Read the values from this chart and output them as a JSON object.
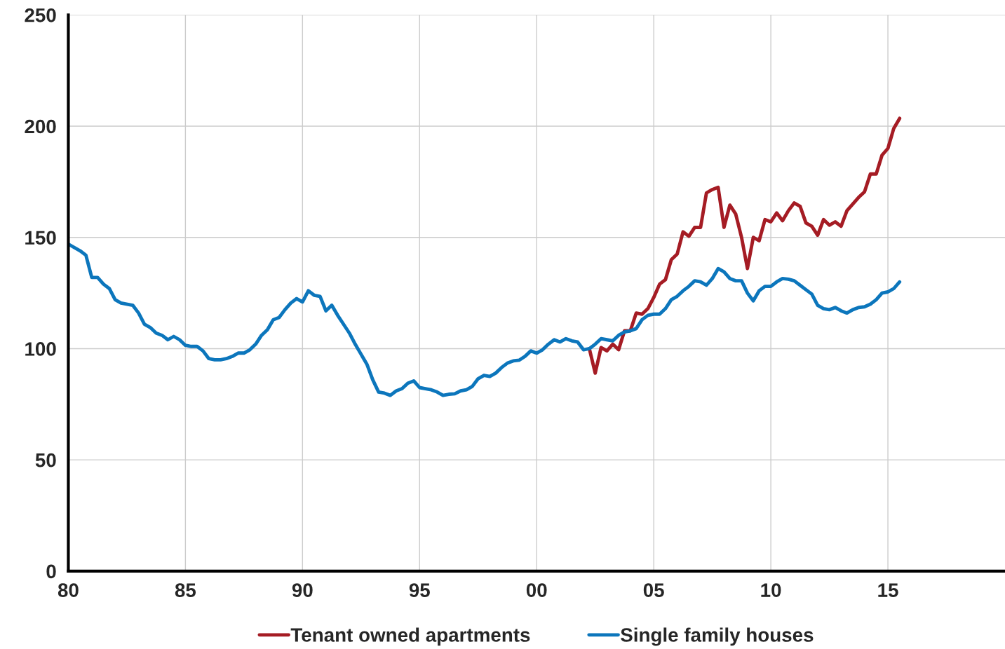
{
  "chart_data": {
    "type": "line",
    "xlim": [
      1980,
      2020
    ],
    "xticks": [
      {
        "value": 1980,
        "label": "80"
      },
      {
        "value": 1985,
        "label": "85"
      },
      {
        "value": 1990,
        "label": "90"
      },
      {
        "value": 1995,
        "label": "95"
      },
      {
        "value": 2000,
        "label": "00"
      },
      {
        "value": 2005,
        "label": "05"
      },
      {
        "value": 2010,
        "label": "10"
      },
      {
        "value": 2015,
        "label": "15"
      }
    ],
    "ylim": [
      0,
      250
    ],
    "yticks": [
      0,
      50,
      100,
      150,
      200,
      250
    ],
    "grid": true,
    "legend": "bottom",
    "marker": "none",
    "line_style": "solid",
    "series": [
      {
        "name": "Tenant owned apartments",
        "color": "#a51c24",
        "x": [
          2002.25,
          2002.5,
          2002.75,
          2003.0,
          2003.25,
          2003.5,
          2003.75,
          2004.0,
          2004.25,
          2004.5,
          2004.75,
          2005.0,
          2005.25,
          2005.5,
          2005.75,
          2006.0,
          2006.25,
          2006.5,
          2006.75,
          2007.0,
          2007.25,
          2007.5,
          2007.75,
          2008.0,
          2008.25,
          2008.5,
          2008.75,
          2009.0,
          2009.25,
          2009.5,
          2009.75,
          2010.0,
          2010.25,
          2010.5,
          2010.75,
          2011.0,
          2011.25,
          2011.5,
          2011.75,
          2012.0,
          2012.25,
          2012.5,
          2012.75,
          2013.0,
          2013.25,
          2013.5,
          2013.75,
          2014.0,
          2014.25,
          2014.5,
          2014.75,
          2015.0,
          2015.25,
          2015.5
        ],
        "values": [
          100,
          89,
          100.5,
          99,
          102,
          99.5,
          108,
          108,
          116,
          115.5,
          118,
          123,
          129,
          131,
          140,
          142.5,
          152.5,
          150.5,
          154.5,
          154.5,
          170,
          171.5,
          172.5,
          154.5,
          164.5,
          160.5,
          150,
          136,
          150,
          148.5,
          158,
          157,
          161,
          157.5,
          162,
          165.5,
          164,
          156.5,
          155,
          151,
          158,
          155.5,
          157,
          155,
          162,
          165,
          168,
          170.5,
          178.5,
          178.5,
          187,
          190,
          199,
          203.5
        ]
      },
      {
        "name": "Single family houses",
        "color": "#0c76bc",
        "x": [
          1980.0,
          1980.5,
          1980.75,
          1981.0,
          1981.25,
          1981.5,
          1981.75,
          1982.0,
          1982.25,
          1982.75,
          1983.0,
          1983.25,
          1983.5,
          1983.75,
          1984.0,
          1984.25,
          1984.5,
          1984.75,
          1985.0,
          1985.25,
          1985.5,
          1985.75,
          1986.0,
          1986.25,
          1986.5,
          1986.75,
          1987.0,
          1987.25,
          1987.5,
          1987.75,
          1988.0,
          1988.25,
          1988.5,
          1988.75,
          1989.0,
          1989.25,
          1989.5,
          1989.75,
          1990.0,
          1990.25,
          1990.5,
          1990.75,
          1991.0,
          1991.25,
          1991.5,
          1991.75,
          1992.0,
          1992.25,
          1992.5,
          1992.75,
          1993.0,
          1993.25,
          1993.5,
          1993.75,
          1994.0,
          1994.25,
          1994.5,
          1994.75,
          1995.0,
          1995.25,
          1995.5,
          1995.75,
          1996.0,
          1996.25,
          1996.5,
          1996.75,
          1997.0,
          1997.25,
          1997.5,
          1997.75,
          1998.0,
          1998.25,
          1998.5,
          1998.75,
          1999.0,
          1999.25,
          1999.5,
          1999.75,
          2000.0,
          2000.25,
          2000.5,
          2000.75,
          2001.0,
          2001.25,
          2001.5,
          2001.75,
          2002.0,
          2002.25,
          2002.5,
          2002.75,
          2003.0,
          2003.25,
          2003.5,
          2003.75,
          2004.0,
          2004.25,
          2004.5,
          2004.75,
          2005.0,
          2005.25,
          2005.5,
          2005.75,
          2006.0,
          2006.25,
          2006.5,
          2006.75,
          2007.0,
          2007.25,
          2007.5,
          2007.75,
          2008.0,
          2008.25,
          2008.5,
          2008.75,
          2009.0,
          2009.25,
          2009.5,
          2009.75,
          2010.0,
          2010.25,
          2010.5,
          2010.75,
          2011.0,
          2011.25,
          2011.5,
          2011.75,
          2012.0,
          2012.25,
          2012.5,
          2012.75,
          2013.0,
          2013.25,
          2013.5,
          2013.75,
          2014.0,
          2014.25,
          2014.5,
          2014.75,
          2015.0,
          2015.25,
          2015.5
        ],
        "values": [
          147,
          144,
          142,
          132,
          132,
          129,
          127,
          122,
          120.5,
          119.5,
          116,
          111,
          109.5,
          107,
          106,
          104,
          105.5,
          104,
          101.5,
          101,
          101,
          99,
          95.5,
          95,
          95,
          95.5,
          96.5,
          98,
          98,
          99.5,
          102,
          106,
          108.5,
          113,
          114,
          117.5,
          120.5,
          122.5,
          121,
          126,
          124,
          123.5,
          117,
          119.5,
          115,
          111,
          107,
          102,
          97.5,
          93,
          86,
          80.5,
          80,
          79,
          81,
          82,
          84.5,
          85.5,
          82.5,
          82,
          81.5,
          80.5,
          79,
          79.5,
          79.7,
          81,
          81.5,
          83,
          86.5,
          88,
          87.5,
          89,
          91.5,
          93.5,
          94.5,
          94.8,
          96.5,
          99,
          98,
          99.5,
          102,
          104,
          103,
          104.5,
          103.5,
          103,
          99.5,
          100,
          102,
          104.5,
          104,
          103.5,
          106,
          107.5,
          108,
          109,
          113,
          115,
          115.5,
          115.5,
          118,
          122,
          123.5,
          126,
          128,
          130.5,
          130,
          128.5,
          131.5,
          136,
          134.5,
          131.5,
          130.5,
          130.5,
          125,
          121.5,
          126,
          128,
          128,
          130,
          131.5,
          131.2,
          130.5,
          128.5,
          126.5,
          124.5,
          119.5,
          118,
          117.5,
          118.5,
          117,
          116,
          117.5,
          118.5,
          118.8,
          120,
          122,
          125,
          125.5,
          127,
          130
        ]
      }
    ]
  }
}
